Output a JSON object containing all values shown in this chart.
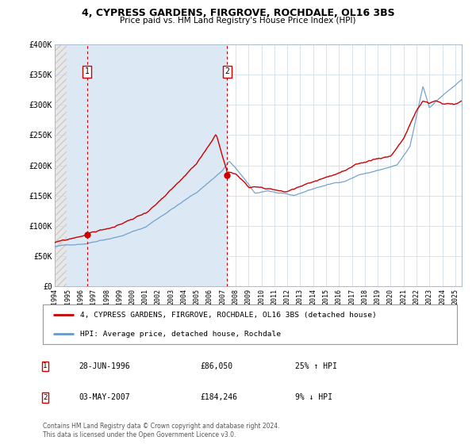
{
  "title": "4, CYPRESS GARDENS, FIRGROVE, ROCHDALE, OL16 3BS",
  "subtitle": "Price paid vs. HM Land Registry's House Price Index (HPI)",
  "legend_line1": "4, CYPRESS GARDENS, FIRGROVE, ROCHDALE, OL16 3BS (detached house)",
  "legend_line2": "HPI: Average price, detached house, Rochdale",
  "annotation1_date": "28-JUN-1996",
  "annotation1_price": "£86,050",
  "annotation1_hpi": "25% ↑ HPI",
  "annotation2_date": "03-MAY-2007",
  "annotation2_price": "£184,246",
  "annotation2_hpi": "9% ↓ HPI",
  "sale1_x": 1996.49,
  "sale1_y": 86050,
  "sale2_x": 2007.34,
  "sale2_y": 184246,
  "vline1_x": 1996.49,
  "vline2_x": 2007.34,
  "xmin": 1994.0,
  "xmax": 2025.5,
  "ymin": 0,
  "ymax": 400000,
  "red_line_color": "#cc0000",
  "blue_line_color": "#6699cc",
  "plot_bg_color": "#ffffff",
  "shaded_region_color": "#dce9f5",
  "grid_color": "#c8d8e8",
  "hatch_color": "#cccccc",
  "footer_text": "Contains HM Land Registry data © Crown copyright and database right 2024.\nThis data is licensed under the Open Government Licence v3.0.",
  "yticks": [
    0,
    50000,
    100000,
    150000,
    200000,
    250000,
    300000,
    350000,
    400000
  ],
  "ytick_labels": [
    "£0",
    "£50K",
    "£100K",
    "£150K",
    "£200K",
    "£250K",
    "£300K",
    "£350K",
    "£400K"
  ],
  "xticks": [
    1994,
    1995,
    1996,
    1997,
    1998,
    1999,
    2000,
    2001,
    2002,
    2003,
    2004,
    2005,
    2006,
    2007,
    2008,
    2009,
    2010,
    2011,
    2012,
    2013,
    2014,
    2015,
    2016,
    2017,
    2018,
    2019,
    2020,
    2021,
    2022,
    2023,
    2024,
    2025
  ]
}
